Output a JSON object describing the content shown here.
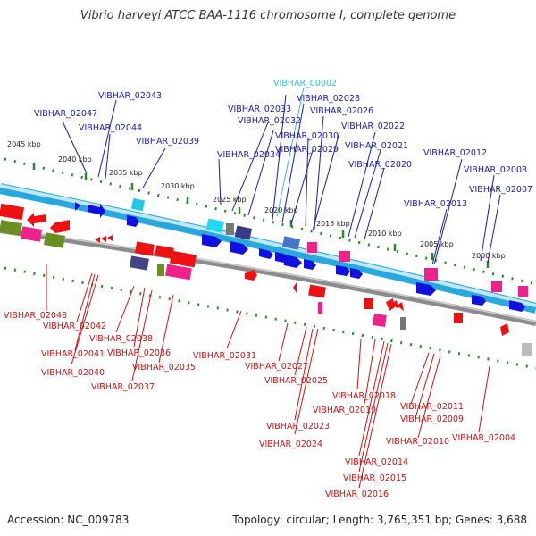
{
  "title": "Vibrio harveyi ATCC BAA-1116 chromosome I, complete genome",
  "accession": "Accession: NC_009783",
  "topology": "Topology: circular; Length: 3,765,351 bp; Genes: 3,688",
  "colors": {
    "backbone_blue": "#29a8e0",
    "backbone_light": "#bfe9fb",
    "backbone_gray": "#8c8c8c",
    "forward_gene": "#1111dd",
    "reverse_gene": "#ee1111",
    "tick": "#2a8a2a",
    "label_top": "#1a1aa6",
    "label_bottom": "#cc1111",
    "label_highlight": "#33c0e0"
  },
  "kbp_marks": [
    "2045 kbp",
    "2040 kbp",
    "2035 kbp",
    "2030 kbp",
    "2025 kbp",
    "2020 kbp",
    "2015 kbp",
    "2010 kbp",
    "2005 kbp",
    "2000 kbp"
  ],
  "top_labels": [
    {
      "text": "VIBHAR_02043",
      "class": "lbl-top"
    },
    {
      "text": "VIBHAR_02047",
      "class": "lbl-top"
    },
    {
      "text": "VIBHAR_02044",
      "class": "lbl-top"
    },
    {
      "text": "VIBHAR_02039",
      "class": "lbl-top"
    },
    {
      "text": "VIBHAR_00002",
      "class": "lbl-cyan"
    },
    {
      "text": "VIBHAR_02028",
      "class": "lbl-top"
    },
    {
      "text": "VIBHAR_02033",
      "class": "lbl-top"
    },
    {
      "text": "VIBHAR_02026",
      "class": "lbl-top"
    },
    {
      "text": "VIBHAR_02032",
      "class": "lbl-top"
    },
    {
      "text": "VIBHAR_02022",
      "class": "lbl-top"
    },
    {
      "text": "VIBHAR_02030",
      "class": "lbl-top"
    },
    {
      "text": "VIBHAR_02021",
      "class": "lbl-top"
    },
    {
      "text": "VIBHAR_02029",
      "class": "lbl-top"
    },
    {
      "text": "VIBHAR_02034",
      "class": "lbl-top"
    },
    {
      "text": "VIBHAR_02012",
      "class": "lbl-top"
    },
    {
      "text": "VIBHAR_02020",
      "class": "lbl-top"
    },
    {
      "text": "VIBHAR_02008",
      "class": "lbl-top"
    },
    {
      "text": "VIBHAR_02007",
      "class": "lbl-top"
    },
    {
      "text": "VIBHAR_02013",
      "class": "lbl-top"
    }
  ],
  "bottom_labels": [
    {
      "text": "VIBHAR_02048"
    },
    {
      "text": "VIBHAR_02042"
    },
    {
      "text": "VIBHAR_02038"
    },
    {
      "text": "VIBHAR_02041"
    },
    {
      "text": "VIBHAR_02036"
    },
    {
      "text": "VIBHAR_02031"
    },
    {
      "text": "VIBHAR_02040"
    },
    {
      "text": "VIBHAR_02035"
    },
    {
      "text": "VIBHAR_02027"
    },
    {
      "text": "VIBHAR_02037"
    },
    {
      "text": "VIBHAR_02025"
    },
    {
      "text": "VIBHAR_02018"
    },
    {
      "text": "VIBHAR_02011"
    },
    {
      "text": "VIBHAR_02019"
    },
    {
      "text": "VIBHAR_02009"
    },
    {
      "text": "VIBHAR_02023"
    },
    {
      "text": "VIBHAR_02004"
    },
    {
      "text": "VIBHAR_02010"
    },
    {
      "text": "VIBHAR_02024"
    },
    {
      "text": "VIBHAR_02014"
    },
    {
      "text": "VIBHAR_02015"
    },
    {
      "text": "VIBHAR_02016"
    }
  ]
}
